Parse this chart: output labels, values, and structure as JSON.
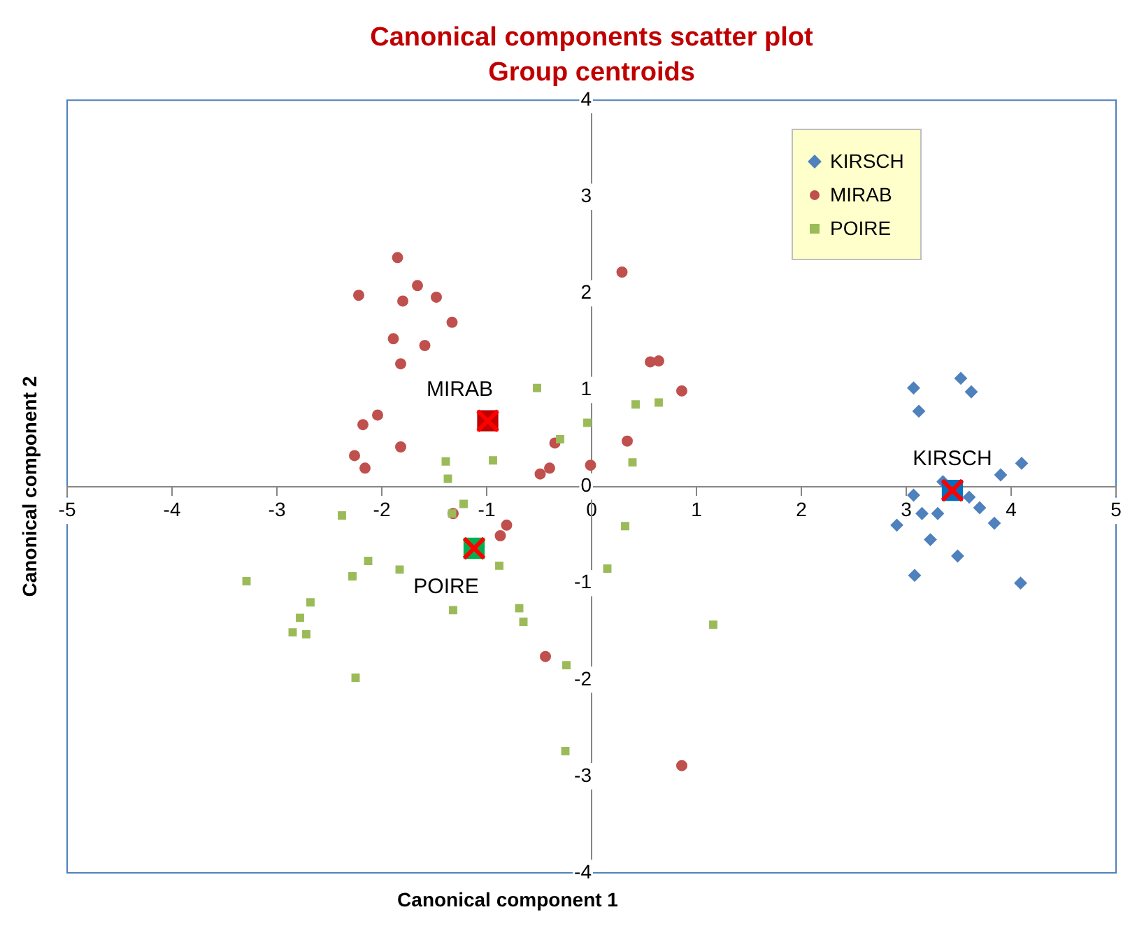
{
  "chart_data": {
    "type": "scatter",
    "title": "Canonical components scatter plot",
    "subtitle": "Group centroids",
    "xlabel": "Canonical component 1",
    "ylabel": "Canonical component 2",
    "xlim": [
      -5,
      5
    ],
    "xticks": [
      -5,
      -4,
      -3,
      -2,
      -1,
      0,
      1,
      2,
      3,
      4,
      5
    ],
    "ylim": [
      -4,
      4
    ],
    "yticks": [
      -4,
      -3,
      -2,
      -1,
      0,
      1,
      2,
      3,
      4
    ],
    "grid": false,
    "legend": "top right",
    "series": [
      {
        "name": "KIRSCH",
        "color": "#4f81bd",
        "marker": "diamond",
        "x": [
          3.07,
          3.52,
          3.62,
          3.12,
          4.1,
          3.9,
          3.35,
          3.07,
          3.6,
          3.7,
          3.15,
          3.3,
          2.91,
          3.84,
          3.23,
          3.49,
          3.08,
          4.09
        ],
        "values": [
          1.02,
          1.12,
          0.98,
          0.78,
          0.24,
          0.12,
          0.05,
          -0.09,
          -0.11,
          -0.22,
          -0.28,
          -0.28,
          -0.4,
          -0.38,
          -0.55,
          -0.72,
          -0.92,
          -1.0
        ]
      },
      {
        "name": "MIRAB",
        "color": "#c0504d",
        "marker": "circle",
        "x": [
          -1.85,
          -2.22,
          -1.66,
          -1.8,
          -1.48,
          -1.33,
          -1.89,
          -1.59,
          -1.82,
          0.29,
          0.56,
          0.64,
          0.86,
          -2.04,
          -2.18,
          -1.82,
          -2.26,
          -2.16,
          -0.35,
          -0.4,
          -0.49,
          -0.01,
          0.34,
          -1.32,
          -0.81,
          -0.87,
          -0.44,
          0.86
        ],
        "values": [
          2.37,
          1.98,
          2.08,
          1.92,
          1.96,
          1.7,
          1.53,
          1.46,
          1.27,
          2.22,
          1.29,
          1.3,
          0.99,
          0.74,
          0.64,
          0.41,
          0.32,
          0.19,
          0.45,
          0.19,
          0.13,
          0.22,
          0.47,
          -0.28,
          -0.4,
          -0.51,
          -1.76,
          -2.89
        ]
      },
      {
        "name": "POIRE",
        "color": "#9bbb59",
        "marker": "square",
        "x": [
          -0.52,
          -0.04,
          -0.3,
          0.42,
          0.64,
          0.39,
          -1.39,
          -0.94,
          -1.37,
          -1.22,
          -1.33,
          -2.38,
          0.32,
          -0.88,
          0.15,
          -1.83,
          -2.13,
          -2.28,
          -3.29,
          -2.68,
          -2.78,
          -2.85,
          -2.72,
          -1.32,
          -0.69,
          -0.65,
          -0.24,
          -2.25,
          -0.25,
          1.16
        ],
        "values": [
          1.02,
          0.66,
          0.49,
          0.85,
          0.87,
          0.25,
          0.26,
          0.27,
          0.08,
          -0.18,
          -0.28,
          -0.3,
          -0.41,
          -0.82,
          -0.85,
          -0.86,
          -0.77,
          -0.93,
          -0.98,
          -1.2,
          -1.36,
          -1.51,
          -1.53,
          -1.28,
          -1.26,
          -1.4,
          -1.85,
          -1.98,
          -2.74,
          -1.43
        ]
      },
      {
        "marker": "square",
        "colors": [
          "#0070c0",
          "#c00000",
          "#00b050"
        ],
        "x": [
          3.44,
          -0.99,
          -1.12
        ],
        "values": [
          -0.04,
          0.68,
          -0.64
        ]
      },
      {
        "marker": "cross",
        "color": "#ff0000",
        "x": [
          3.44,
          -0.99,
          -1.12
        ],
        "values": [
          -0.04,
          0.68,
          -0.64
        ]
      }
    ],
    "annotations": [
      {
        "text": "KIRSCH",
        "x": 3.44,
        "y": -0.04
      },
      {
        "text": "MIRAB",
        "x": -0.99,
        "y": 0.68
      },
      {
        "text": "POIRE",
        "x": -1.12,
        "y": -0.64
      }
    ]
  }
}
